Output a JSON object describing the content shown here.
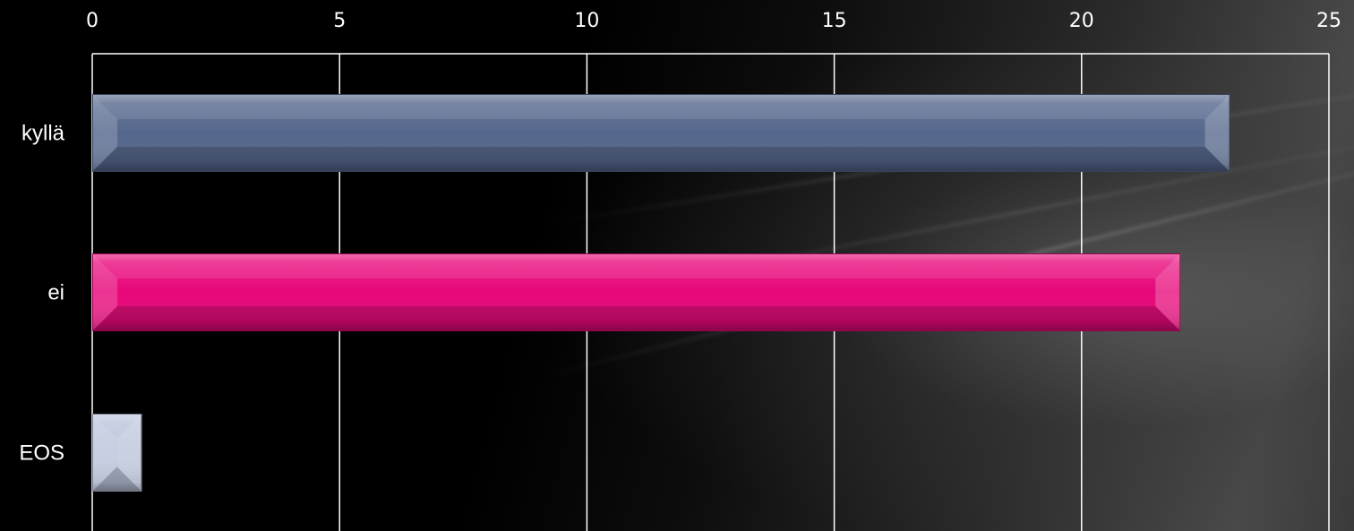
{
  "chart_data": {
    "type": "bar",
    "orientation": "horizontal",
    "categories": [
      "kyllä",
      "ei",
      "EOS"
    ],
    "values": [
      23,
      22,
      1
    ],
    "bar_colors": [
      "#55678c",
      "#e8077a",
      "#b9c3da"
    ],
    "xlim": [
      0,
      25
    ],
    "xticks": [
      "0",
      "5",
      "10",
      "15",
      "20",
      "25"
    ],
    "x_tick_position": "top",
    "grid": true,
    "legend": "none",
    "title": "",
    "xlabel": "",
    "ylabel": ""
  },
  "colors": {
    "background": "#000000",
    "gridline": "#ffffff",
    "text": "#ffffff"
  }
}
